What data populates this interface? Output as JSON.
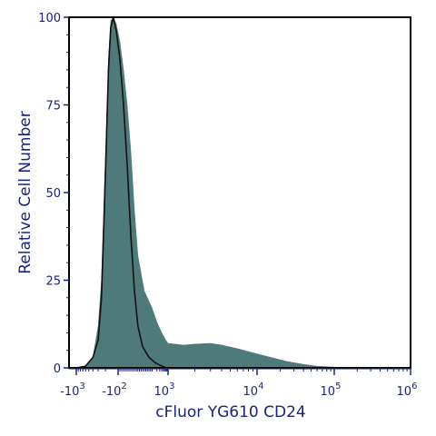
{
  "chart_data": {
    "type": "area",
    "xlabel": "cFluor YG610 CD24",
    "ylabel": "Relative Cell Number",
    "x_scale": "biexponential",
    "ylim": [
      0,
      100
    ],
    "y_ticks": [
      "0",
      "25",
      "50",
      "75",
      "100"
    ],
    "x_ticks": [
      {
        "value": -1000,
        "base": "-10",
        "exp": "3"
      },
      {
        "value": -100,
        "base": "-10",
        "exp": "2"
      },
      {
        "value": 1000,
        "base": "10",
        "exp": "3"
      },
      {
        "value": 10000,
        "base": "10",
        "exp": "4"
      },
      {
        "value": 100000,
        "base": "10",
        "exp": "5"
      },
      {
        "value": 1000000,
        "base": "10",
        "exp": "6"
      }
    ],
    "series": [
      {
        "type": "area",
        "color": "#4e7a79",
        "points": [
          [
            -1000,
            0
          ],
          [
            -600,
            0.5
          ],
          [
            -400,
            3
          ],
          [
            -300,
            12
          ],
          [
            -250,
            25
          ],
          [
            -220,
            45
          ],
          [
            -190,
            70
          ],
          [
            -170,
            88
          ],
          [
            -150,
            99
          ],
          [
            -130,
            100
          ],
          [
            -110,
            98
          ],
          [
            -90,
            93
          ],
          [
            -70,
            85
          ],
          [
            -50,
            75
          ],
          [
            -30,
            62
          ],
          [
            -10,
            45
          ],
          [
            10,
            32
          ],
          [
            50,
            22
          ],
          [
            100,
            17
          ],
          [
            200,
            13
          ],
          [
            400,
            10
          ],
          [
            700,
            8
          ],
          [
            1000,
            7
          ],
          [
            1500,
            6.5
          ],
          [
            2000,
            6.8
          ],
          [
            3000,
            7
          ],
          [
            4000,
            6.5
          ],
          [
            6000,
            5.5
          ],
          [
            10000,
            4
          ],
          [
            15000,
            3
          ],
          [
            25000,
            1.8
          ],
          [
            40000,
            1
          ],
          [
            60000,
            0.5
          ],
          [
            100000,
            0.2
          ],
          [
            200000,
            0
          ]
        ]
      },
      {
        "type": "line",
        "color": "#111111",
        "points": [
          [
            -1000,
            0
          ],
          [
            -600,
            0.5
          ],
          [
            -400,
            3
          ],
          [
            -300,
            8
          ],
          [
            -250,
            20
          ],
          [
            -220,
            40
          ],
          [
            -190,
            65
          ],
          [
            -170,
            85
          ],
          [
            -150,
            97
          ],
          [
            -130,
            100
          ],
          [
            -110,
            96
          ],
          [
            -90,
            88
          ],
          [
            -70,
            75
          ],
          [
            -50,
            58
          ],
          [
            -30,
            38
          ],
          [
            -10,
            22
          ],
          [
            10,
            12
          ],
          [
            40,
            6
          ],
          [
            80,
            3
          ],
          [
            150,
            1.5
          ],
          [
            300,
            0.8
          ],
          [
            500,
            0.3
          ],
          [
            800,
            0
          ]
        ]
      }
    ],
    "grid": false
  }
}
